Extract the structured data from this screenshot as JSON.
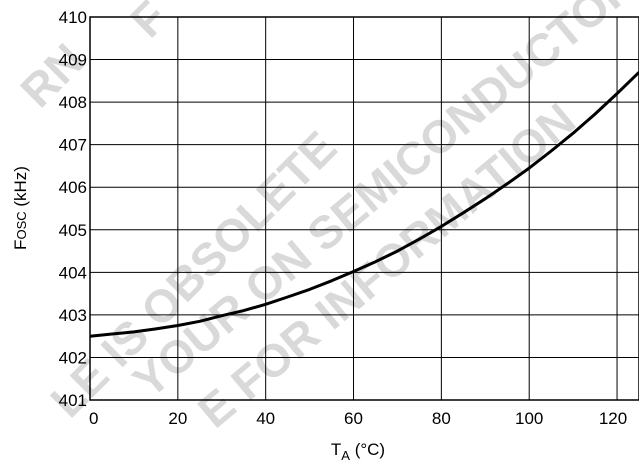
{
  "chart_data": {
    "type": "line",
    "xlabel_main": "T",
    "xlabel_sub": "A",
    "xlabel_unit": " (°C)",
    "ylabel_main": "F",
    "ylabel_sub": "OSC",
    "ylabel_unit": " (kHz)",
    "xlim": [
      0,
      125
    ],
    "ylim": [
      401,
      410
    ],
    "x_ticks": [
      0,
      20,
      40,
      60,
      80,
      100,
      120
    ],
    "y_ticks": [
      401,
      402,
      403,
      404,
      405,
      406,
      407,
      408,
      409,
      410
    ],
    "grid": true,
    "series": [
      {
        "x": [
          0,
          5,
          10,
          15,
          20,
          25,
          30,
          35,
          40,
          45,
          50,
          55,
          60,
          65,
          70,
          75,
          80,
          85,
          90,
          95,
          100,
          105,
          110,
          115,
          120,
          125
        ],
        "y": [
          402.5,
          402.55,
          402.6,
          402.67,
          402.75,
          402.85,
          402.98,
          403.1,
          403.25,
          403.42,
          403.6,
          403.8,
          404.02,
          404.25,
          404.5,
          404.78,
          405.08,
          405.4,
          405.73,
          406.08,
          406.45,
          406.85,
          407.27,
          407.72,
          408.2,
          408.7
        ],
        "color": "#000000"
      }
    ]
  },
  "watermark": [
    "LE IS OBSOLETE",
    "YOUR ON SEMICONDUCTOR",
    "E FOR INFORMATION",
    "F",
    "RN"
  ],
  "colors": {
    "grid": "#000000",
    "watermark": "#d9d9d9",
    "line": "#000000"
  }
}
